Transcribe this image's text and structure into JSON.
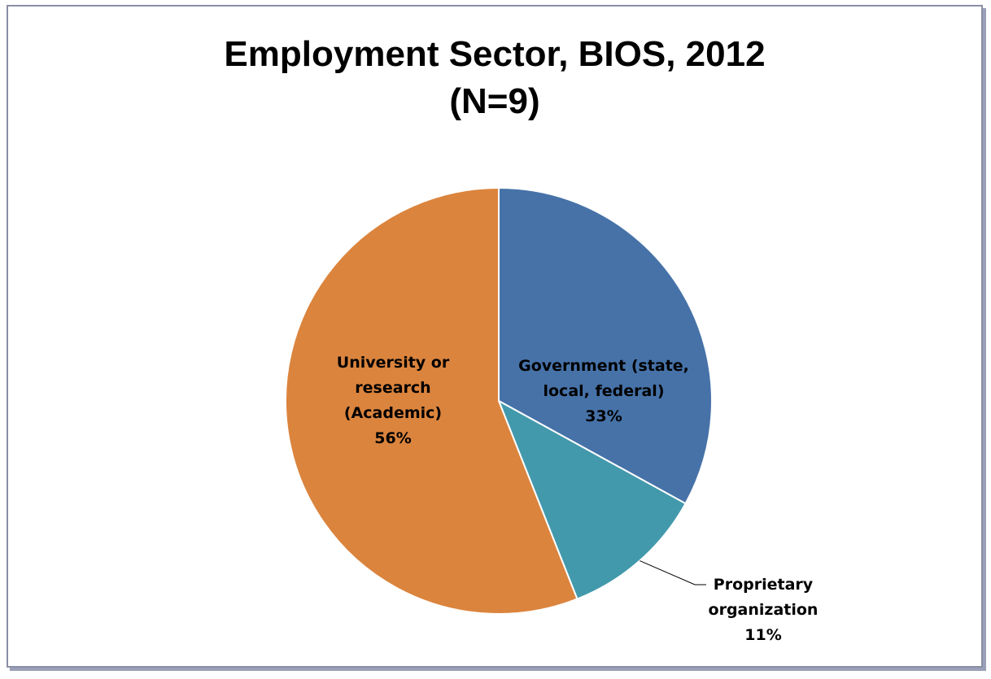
{
  "chart_data": {
    "type": "pie",
    "title": "Employment Sector, BIOS, 2012",
    "subtitle": "(N=9)",
    "slices": [
      {
        "label_lines": [
          "Government (state,",
          "local, federal)"
        ],
        "value": 33,
        "value_label": "33%",
        "color": "#4672a8"
      },
      {
        "label_lines": [
          "Proprietary",
          "organization"
        ],
        "value": 11,
        "value_label": "11%",
        "color": "#4399ac"
      },
      {
        "label_lines": [
          "University or",
          "research",
          "(Academic)"
        ],
        "value": 56,
        "value_label": "56%",
        "color": "#db843d"
      }
    ]
  }
}
